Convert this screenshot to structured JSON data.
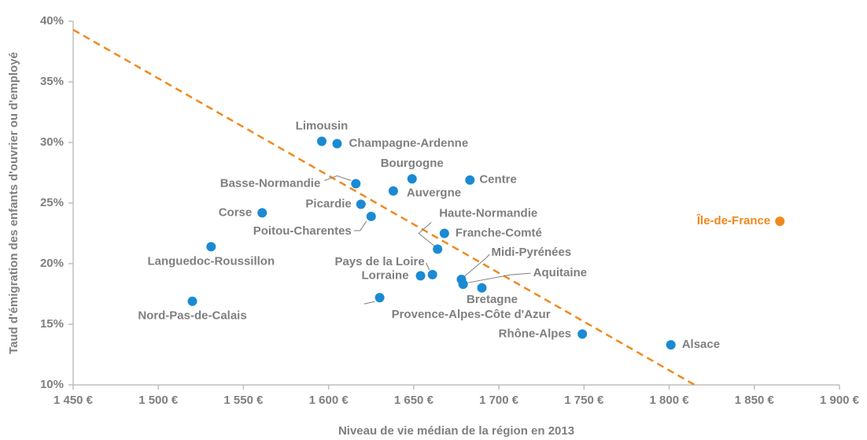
{
  "chart_data": {
    "type": "scatter",
    "x_label": "Niveau de vie médian de la région en 2013",
    "y_label": "Taud d'émigration des enfants d'ouvrier ou d'employé",
    "color": "#1b8ad3",
    "label_color": "#7f7f7f",
    "xlim": [
      1450,
      1900
    ],
    "ylim": [
      10,
      40
    ],
    "xticks": [
      {
        "value": 1450,
        "label": "1 450 €"
      },
      {
        "value": 1500,
        "label": "1 500 €"
      },
      {
        "value": 1550,
        "label": "1 550 €"
      },
      {
        "value": 1600,
        "label": "1 600 €"
      },
      {
        "value": 1650,
        "label": "1 650 €"
      },
      {
        "value": 1700,
        "label": "1 700 €"
      },
      {
        "value": 1750,
        "label": "1 750 €"
      },
      {
        "value": 1800,
        "label": "1 800 €"
      },
      {
        "value": 1850,
        "label": "1 850 €"
      },
      {
        "value": 1900,
        "label": "1 900 €"
      }
    ],
    "yticks": [
      {
        "value": 10,
        "label": "10%"
      },
      {
        "value": 15,
        "label": "15%"
      },
      {
        "value": 20,
        "label": "20%"
      },
      {
        "value": 25,
        "label": "25%"
      },
      {
        "value": 30,
        "label": "30%"
      },
      {
        "value": 35,
        "label": "35%"
      },
      {
        "value": 40,
        "label": "40%"
      }
    ],
    "points": [
      {
        "label": "Limousin",
        "x": 1596,
        "y": 30.1
      },
      {
        "label": "Champagne-Ardenne",
        "x": 1605,
        "y": 29.9
      },
      {
        "label": "Bourgogne",
        "x": 1649,
        "y": 27.0
      },
      {
        "label": "Centre",
        "x": 1683,
        "y": 26.9
      },
      {
        "label": "Basse-Normandie",
        "x": 1616,
        "y": 26.6
      },
      {
        "label": "Auvergne",
        "x": 1638,
        "y": 26.0
      },
      {
        "label": "Corse",
        "x": 1561,
        "y": 24.2
      },
      {
        "label": "Picardie",
        "x": 1619,
        "y": 24.9
      },
      {
        "label": "Poitou-Charentes",
        "x": 1625,
        "y": 23.9
      },
      {
        "label": "Haute-Normandie",
        "x": 1664,
        "y": 21.2
      },
      {
        "label": "Franche-Comté",
        "x": 1668,
        "y": 22.5
      },
      {
        "label": "Languedoc-Roussillon",
        "x": 1531,
        "y": 21.4
      },
      {
        "label": "Pays de la Loire",
        "x": 1661,
        "y": 19.1
      },
      {
        "label": "Lorraine",
        "x": 1654,
        "y": 19.0
      },
      {
        "label": "Midi-Pyrénées",
        "x": 1678,
        "y": 18.7
      },
      {
        "label": "Aquitaine",
        "x": 1679,
        "y": 18.3
      },
      {
        "label": "Bretagne",
        "x": 1690,
        "y": 18.0
      },
      {
        "label": "Provence-Alpes-Côte d'Azur",
        "x": 1630,
        "y": 17.2
      },
      {
        "label": "Nord-Pas-de-Calais",
        "x": 1520,
        "y": 16.9
      },
      {
        "label": "Rhône-Alpes",
        "x": 1749,
        "y": 14.2
      },
      {
        "label": "Alsace",
        "x": 1801,
        "y": 13.3
      },
      {
        "label": "Île-de-France",
        "x": 1865,
        "y": 23.5,
        "color": "#f0891f"
      }
    ],
    "trendline": {
      "color": "#f0891f",
      "x": [
        1450,
        1815
      ],
      "y": [
        39.3,
        10
      ]
    }
  }
}
